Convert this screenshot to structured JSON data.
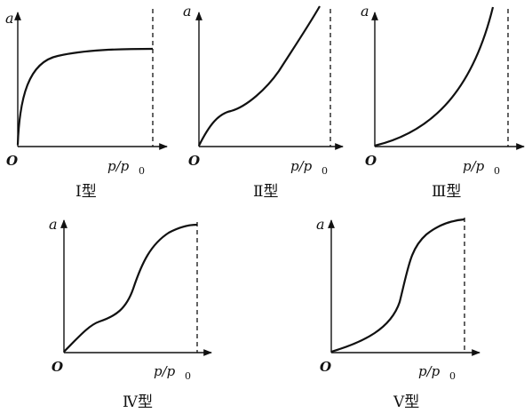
{
  "axis_labels": {
    "y": "a",
    "origin": "O",
    "x_main": "p/p",
    "x_sub": "0"
  },
  "panels": [
    {
      "id": "type-1",
      "caption": "Ⅰ型"
    },
    {
      "id": "type-2",
      "caption": "Ⅱ型"
    },
    {
      "id": "type-3",
      "caption": "Ⅲ型"
    },
    {
      "id": "type-4",
      "caption": "Ⅳ型"
    },
    {
      "id": "type-5",
      "caption": "Ⅴ型"
    }
  ],
  "colors": {
    "ink": "#111111",
    "background": "#ffffff"
  }
}
